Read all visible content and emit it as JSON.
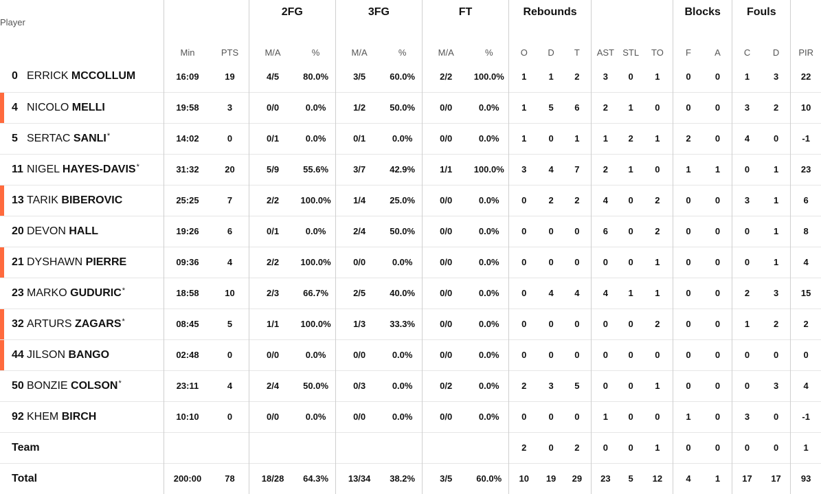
{
  "groups": [
    "2FG",
    "3FG",
    "FT",
    "Rebounds",
    "Blocks",
    "Fouls"
  ],
  "columns": [
    "Player",
    "Min",
    "PTS",
    "M/A",
    "%",
    "M/A",
    "%",
    "M/A",
    "%",
    "O",
    "D",
    "T",
    "AST",
    "STL",
    "TO",
    "F",
    "A",
    "C",
    "D",
    "PIR"
  ],
  "players": [
    {
      "num": "0",
      "first": "ERRICK",
      "last": "MCCOLLUM",
      "star": false,
      "starter": false,
      "stats": [
        "16:09",
        "19",
        "4/5",
        "80.0%",
        "3/5",
        "60.0%",
        "2/2",
        "100.0%",
        "1",
        "1",
        "2",
        "3",
        "0",
        "1",
        "0",
        "0",
        "1",
        "3",
        "22"
      ]
    },
    {
      "num": "4",
      "first": "NICOLO",
      "last": "MELLI",
      "star": false,
      "starter": true,
      "stats": [
        "19:58",
        "3",
        "0/0",
        "0.0%",
        "1/2",
        "50.0%",
        "0/0",
        "0.0%",
        "1",
        "5",
        "6",
        "2",
        "1",
        "0",
        "0",
        "0",
        "3",
        "2",
        "10"
      ]
    },
    {
      "num": "5",
      "first": "SERTAC",
      "last": "SANLI",
      "star": true,
      "starter": false,
      "stats": [
        "14:02",
        "0",
        "0/1",
        "0.0%",
        "0/1",
        "0.0%",
        "0/0",
        "0.0%",
        "1",
        "0",
        "1",
        "1",
        "2",
        "1",
        "2",
        "0",
        "4",
        "0",
        "-1"
      ]
    },
    {
      "num": "11",
      "first": "NIGEL",
      "last": "HAYES-DAVIS",
      "star": true,
      "starter": false,
      "stats": [
        "31:32",
        "20",
        "5/9",
        "55.6%",
        "3/7",
        "42.9%",
        "1/1",
        "100.0%",
        "3",
        "4",
        "7",
        "2",
        "1",
        "0",
        "1",
        "1",
        "0",
        "1",
        "23"
      ]
    },
    {
      "num": "13",
      "first": "TARIK",
      "last": "BIBEROVIC",
      "star": false,
      "starter": true,
      "stats": [
        "25:25",
        "7",
        "2/2",
        "100.0%",
        "1/4",
        "25.0%",
        "0/0",
        "0.0%",
        "0",
        "2",
        "2",
        "4",
        "0",
        "2",
        "0",
        "0",
        "3",
        "1",
        "6"
      ]
    },
    {
      "num": "20",
      "first": "DEVON",
      "last": "HALL",
      "star": false,
      "starter": false,
      "stats": [
        "19:26",
        "6",
        "0/1",
        "0.0%",
        "2/4",
        "50.0%",
        "0/0",
        "0.0%",
        "0",
        "0",
        "0",
        "6",
        "0",
        "2",
        "0",
        "0",
        "0",
        "1",
        "8"
      ]
    },
    {
      "num": "21",
      "first": "DYSHAWN",
      "last": "PIERRE",
      "star": false,
      "starter": true,
      "stats": [
        "09:36",
        "4",
        "2/2",
        "100.0%",
        "0/0",
        "0.0%",
        "0/0",
        "0.0%",
        "0",
        "0",
        "0",
        "0",
        "0",
        "1",
        "0",
        "0",
        "0",
        "1",
        "4"
      ]
    },
    {
      "num": "23",
      "first": "MARKO",
      "last": "GUDURIC",
      "star": true,
      "starter": false,
      "stats": [
        "18:58",
        "10",
        "2/3",
        "66.7%",
        "2/5",
        "40.0%",
        "0/0",
        "0.0%",
        "0",
        "4",
        "4",
        "4",
        "1",
        "1",
        "0",
        "0",
        "2",
        "3",
        "15"
      ]
    },
    {
      "num": "32",
      "first": "ARTURS",
      "last": "ZAGARS",
      "star": true,
      "starter": true,
      "stats": [
        "08:45",
        "5",
        "1/1",
        "100.0%",
        "1/3",
        "33.3%",
        "0/0",
        "0.0%",
        "0",
        "0",
        "0",
        "0",
        "0",
        "2",
        "0",
        "0",
        "1",
        "2",
        "2"
      ]
    },
    {
      "num": "44",
      "first": "JILSON",
      "last": "BANGO",
      "star": false,
      "starter": true,
      "stats": [
        "02:48",
        "0",
        "0/0",
        "0.0%",
        "0/0",
        "0.0%",
        "0/0",
        "0.0%",
        "0",
        "0",
        "0",
        "0",
        "0",
        "0",
        "0",
        "0",
        "0",
        "0",
        "0"
      ]
    },
    {
      "num": "50",
      "first": "BONZIE",
      "last": "COLSON",
      "star": true,
      "starter": false,
      "stats": [
        "23:11",
        "4",
        "2/4",
        "50.0%",
        "0/3",
        "0.0%",
        "0/2",
        "0.0%",
        "2",
        "3",
        "5",
        "0",
        "0",
        "1",
        "0",
        "0",
        "0",
        "3",
        "4"
      ]
    },
    {
      "num": "92",
      "first": "KHEM",
      "last": "BIRCH",
      "star": false,
      "starter": false,
      "stats": [
        "10:10",
        "0",
        "0/0",
        "0.0%",
        "0/0",
        "0.0%",
        "0/0",
        "0.0%",
        "0",
        "0",
        "0",
        "1",
        "0",
        "0",
        "1",
        "0",
        "3",
        "0",
        "-1"
      ]
    }
  ],
  "team": {
    "label": "Team",
    "stats": [
      "",
      "",
      "",
      "",
      "",
      "",
      "",
      "",
      "2",
      "0",
      "2",
      "0",
      "0",
      "1",
      "0",
      "0",
      "0",
      "0",
      "1"
    ]
  },
  "total": {
    "label": "Total",
    "stats": [
      "200:00",
      "78",
      "18/28",
      "64.3%",
      "13/34",
      "38.2%",
      "3/5",
      "60.0%",
      "10",
      "19",
      "29",
      "23",
      "5",
      "12",
      "4",
      "1",
      "17",
      "17",
      "93"
    ]
  },
  "colors": {
    "starter_marker": "#ff6a3d",
    "divider": "#cfcfcf",
    "row_line": "#e6e6e6"
  }
}
